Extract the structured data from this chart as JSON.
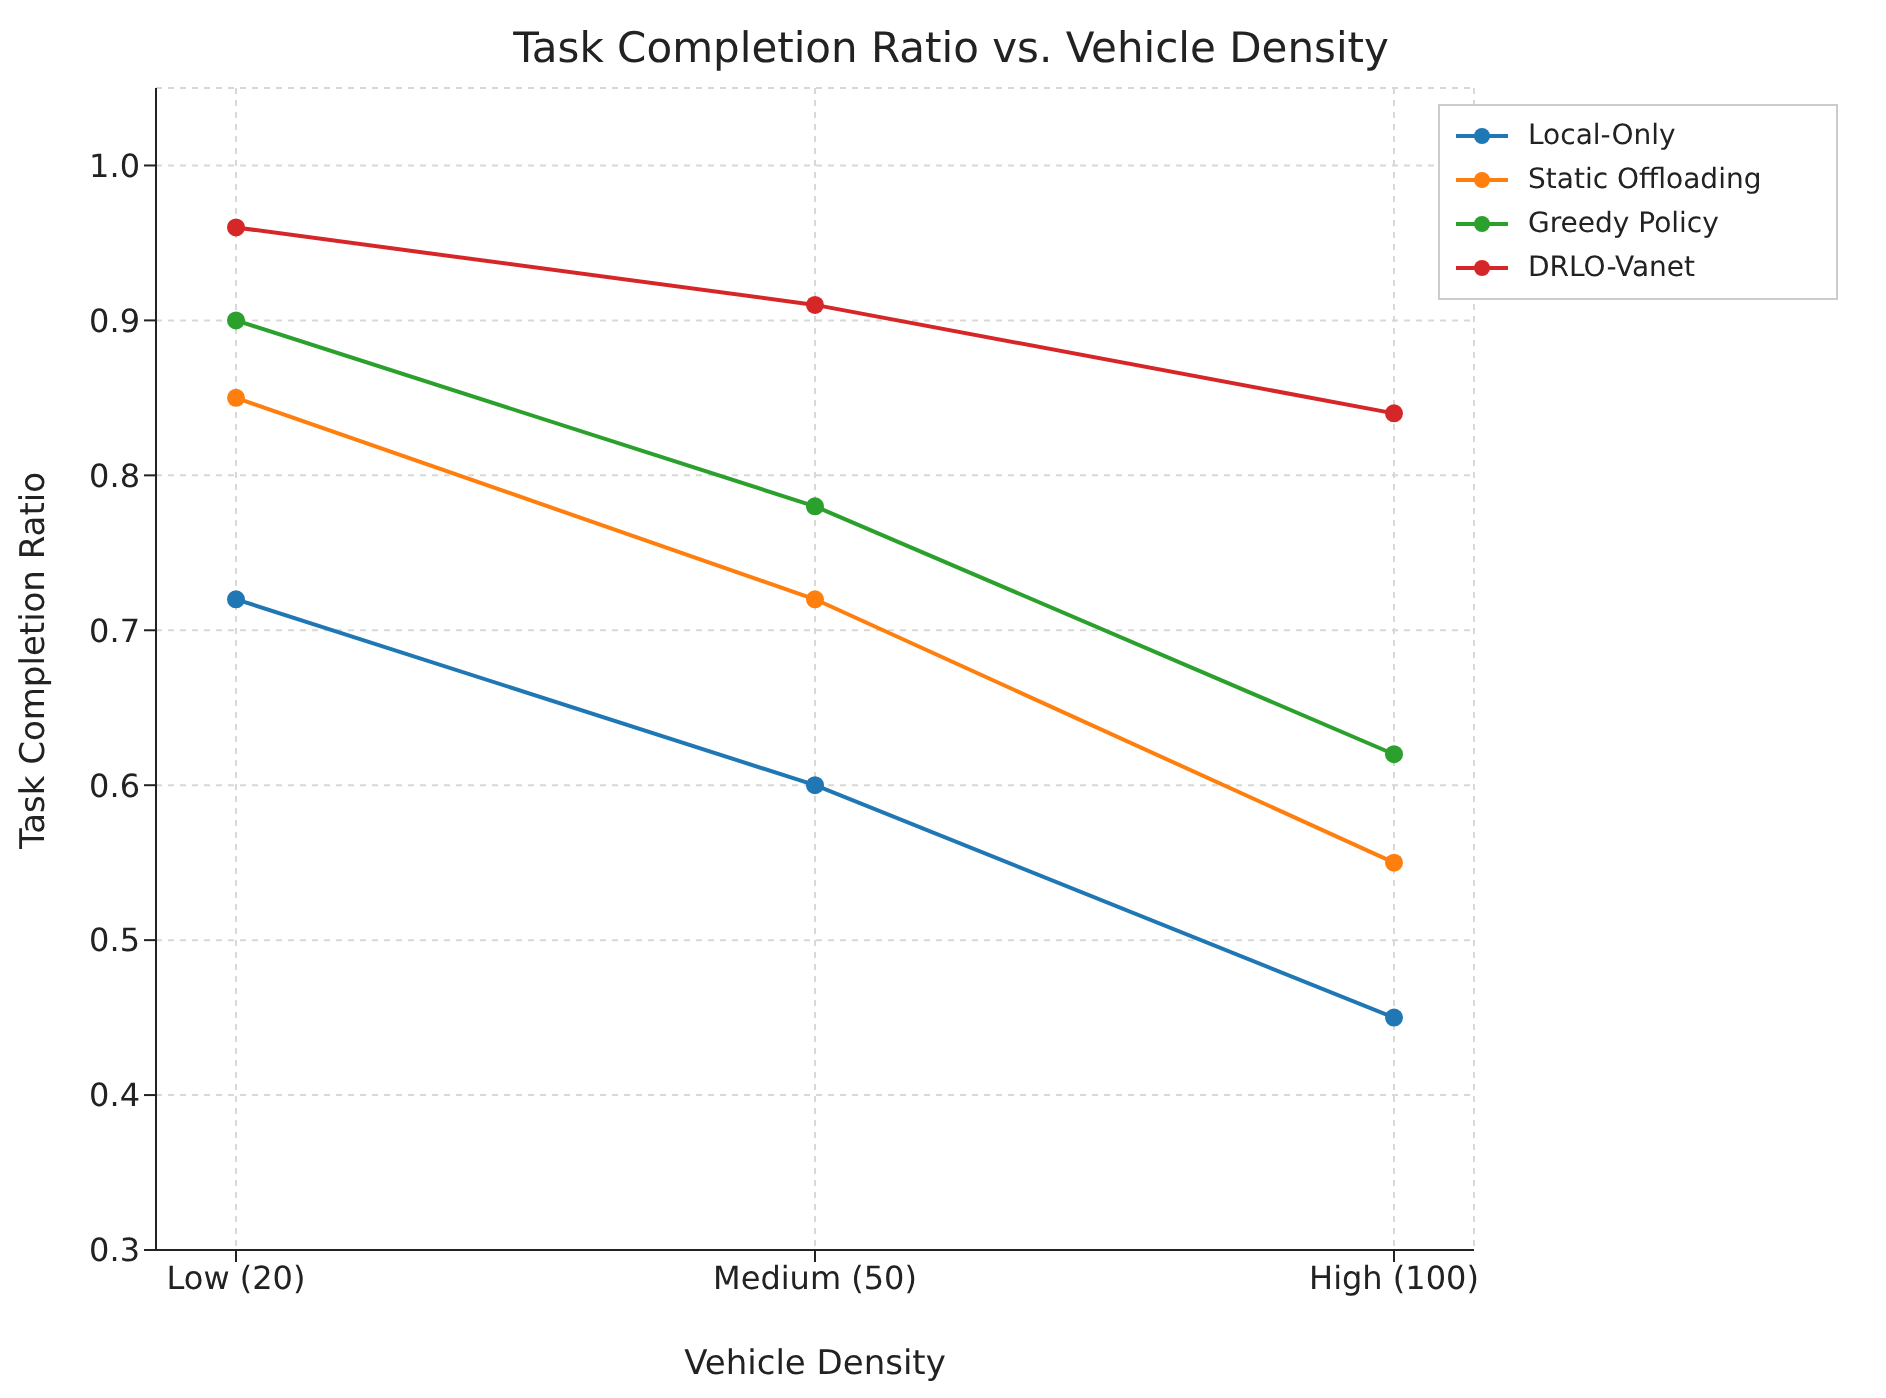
{
  "chart_data": {
    "type": "line",
    "title": "Task Completion Ratio vs. Vehicle Density",
    "xlabel": "Vehicle Density",
    "ylabel": "Task Completion Ratio",
    "categories": [
      "Low (20)",
      "Medium (50)",
      "High (100)"
    ],
    "series": [
      {
        "name": "Local-Only",
        "color": "#1f77b4",
        "values": [
          0.72,
          0.6,
          0.45
        ]
      },
      {
        "name": "Static Offloading",
        "color": "#ff7f0e",
        "values": [
          0.85,
          0.72,
          0.55
        ]
      },
      {
        "name": "Greedy Policy",
        "color": "#2ca02c",
        "values": [
          0.9,
          0.78,
          0.62
        ]
      },
      {
        "name": "DRLO-Vanet",
        "color": "#d62728",
        "values": [
          0.96,
          0.91,
          0.84
        ]
      }
    ],
    "ylim": [
      0.3,
      1.05
    ],
    "yticks": [
      {
        "value": 0.3,
        "label": "0.3"
      },
      {
        "value": 0.4,
        "label": "0.4"
      },
      {
        "value": 0.5,
        "label": "0.5"
      },
      {
        "value": 0.6,
        "label": "0.6"
      },
      {
        "value": 0.7,
        "label": "0.7"
      },
      {
        "value": 0.8,
        "label": "0.8"
      },
      {
        "value": 0.9,
        "label": "0.9"
      },
      {
        "value": 1.0,
        "label": "1.0"
      }
    ],
    "grid": true,
    "legend": "top right",
    "marker": "circle",
    "line_style": "solid"
  }
}
